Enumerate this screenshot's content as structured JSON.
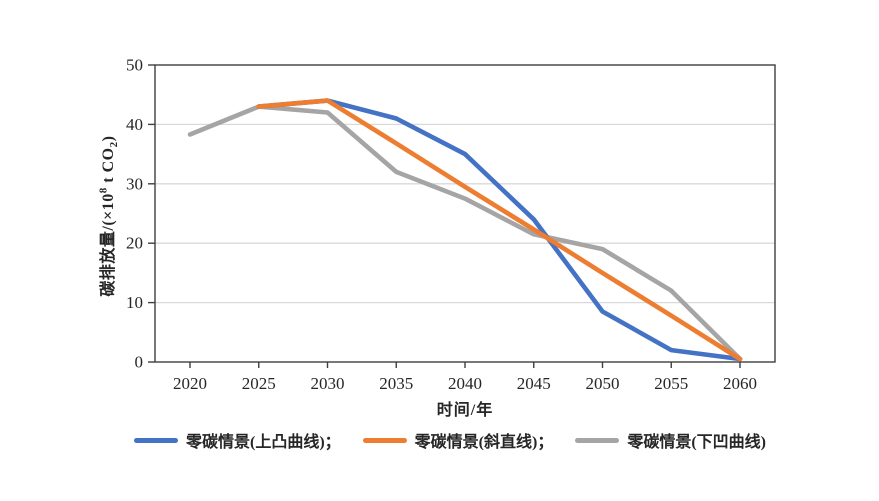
{
  "colors": {
    "background": "#ffffff",
    "grid": "#d9d9d9",
    "axis": "#3f3f3f",
    "text": "#262626"
  },
  "chart_data": {
    "type": "line",
    "title": "",
    "xlabel": "时间/年",
    "ylabel": "碳排放量/(×10⁸ t CO₂)",
    "ylabel_parts": {
      "prefix": "碳排放量/(×10",
      "sup": "8",
      "mid": " t CO",
      "sub": "2",
      "suffix": ")"
    },
    "x": [
      2020,
      2025,
      2030,
      2035,
      2040,
      2045,
      2050,
      2055,
      2060
    ],
    "ylim": [
      0,
      50
    ],
    "yticks": [
      0,
      10,
      20,
      30,
      40,
      50
    ],
    "grid": "horizontal-only",
    "legend_position": "bottom",
    "series": [
      {
        "name": "零碳情景(上凸曲线)",
        "legend_label": "零碳情景(上凸曲线)；",
        "color": "#4472C4",
        "z": 1,
        "values": [
          null,
          43,
          44,
          41,
          35,
          24,
          8.5,
          2,
          0.5
        ]
      },
      {
        "name": "零碳情景(斜直线)",
        "legend_label": "零碳情景(斜直线)；",
        "color": "#ED7D31",
        "z": 2,
        "values": [
          null,
          43,
          44,
          36.8,
          29.5,
          22.3,
          15,
          7.8,
          0.5
        ]
      },
      {
        "name": "零碳情景(下凹曲线)",
        "legend_label": "零碳情景(下凹曲线)",
        "color": "#A5A5A5",
        "z": 0,
        "values": [
          38.3,
          43,
          42,
          32,
          27.5,
          21.5,
          19,
          12,
          0.5
        ]
      }
    ]
  }
}
